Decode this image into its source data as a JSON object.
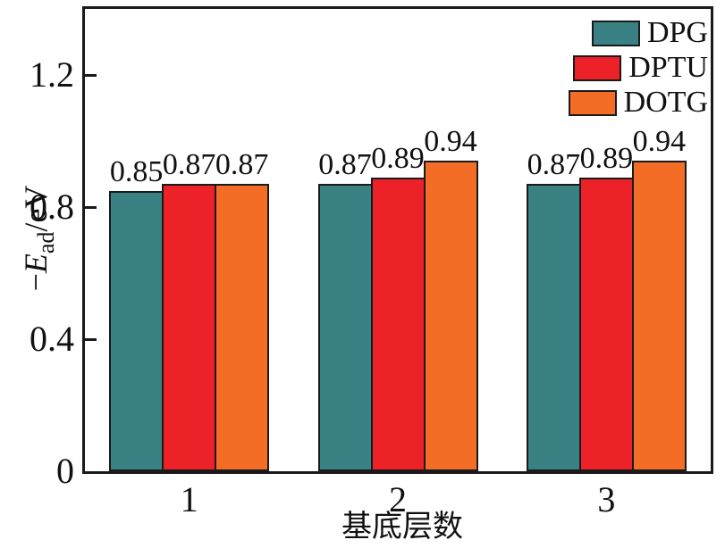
{
  "figure": {
    "background": "#ffffff",
    "frame_color": "#1a1a1a",
    "text_color": "#111111"
  },
  "chart_data": {
    "type": "bar",
    "title": "",
    "xlabel": "基底层数",
    "ylabel": "-E_ad/eV",
    "ylabel_parts": {
      "prefix": "−",
      "symbol": "E",
      "subscript": "ad",
      "unit": "/eV"
    },
    "categories": [
      "1",
      "2",
      "3"
    ],
    "series": [
      {
        "name": "DPG",
        "color": "#3A8184",
        "values": [
          0.85,
          0.87,
          0.87
        ],
        "labels": [
          "0.85",
          "0.87",
          "0.87"
        ]
      },
      {
        "name": "DPTU",
        "color": "#EC2228",
        "values": [
          0.87,
          0.89,
          0.89
        ],
        "labels": [
          "0.87",
          "0.89",
          "0.89"
        ]
      },
      {
        "name": "DOTG",
        "color": "#F36D26",
        "values": [
          0.87,
          0.94,
          0.94
        ],
        "labels": [
          "0.87",
          "0.94",
          "0.94"
        ]
      }
    ],
    "yticks": [
      {
        "value": 0,
        "label": "0"
      },
      {
        "value": 0.4,
        "label": "0.4"
      },
      {
        "value": 0.8,
        "label": "0.8"
      },
      {
        "value": 1.2,
        "label": "1.2"
      }
    ],
    "ylim": [
      0,
      1.4
    ],
    "grid": false,
    "legend_position": "top-right",
    "bar_edge_color": "#1a1a1a"
  }
}
